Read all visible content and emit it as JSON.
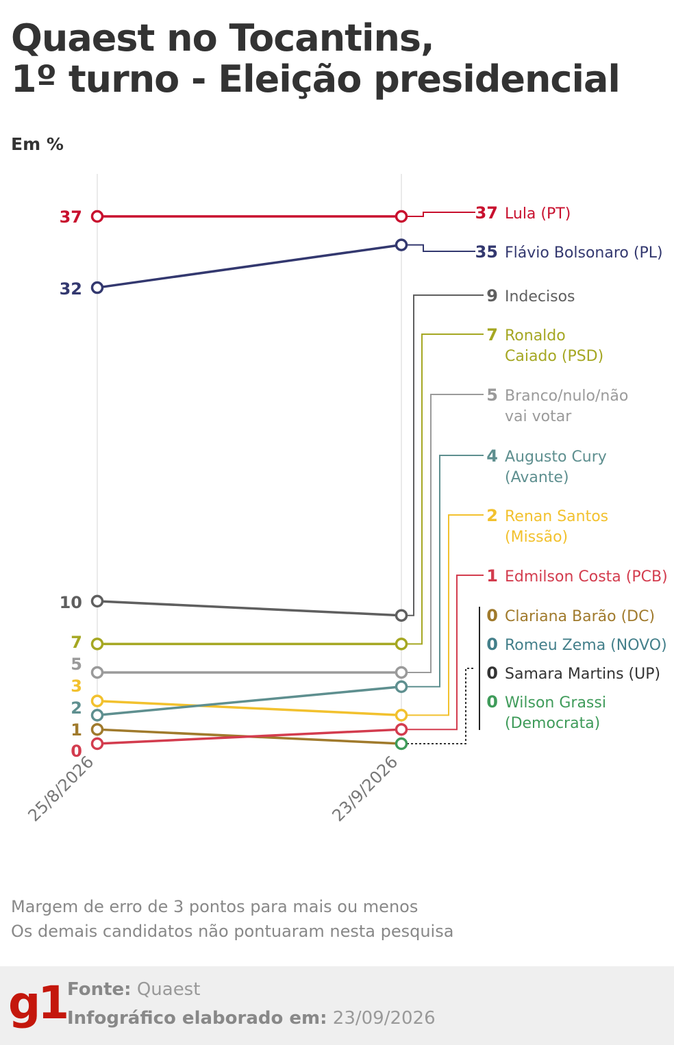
{
  "title_line1": "Quaest no Tocantins,",
  "title_line2": "1º turno - Eleição presidencial",
  "unit": "Em %",
  "chart_data": {
    "type": "line",
    "categories": [
      "25/8/2026",
      "23/9/2026"
    ],
    "series": [
      {
        "name": "Lula (PT)",
        "values": [
          37,
          37
        ],
        "color": "#c8102e"
      },
      {
        "name": "Flávio Bolsonaro (PL)",
        "values": [
          32,
          35
        ],
        "color": "#33386f"
      },
      {
        "name": "Indecisos",
        "values": [
          10,
          9
        ],
        "color": "#5f5f5f"
      },
      {
        "name": "Ronaldo Caiado (PSD)",
        "values": [
          7,
          7
        ],
        "color": "#a5a722"
      },
      {
        "name": "Branco/nulo/não vai votar",
        "values": [
          5,
          5
        ],
        "color": "#9a9a9a"
      },
      {
        "name": "Augusto Cury (Avante)",
        "values": [
          2,
          4
        ],
        "color": "#5e8f8f"
      },
      {
        "name": "Renan Santos (Missão)",
        "values": [
          3,
          2
        ],
        "color": "#f2c12e"
      },
      {
        "name": "Edmilson Costa (PCB)",
        "values": [
          0,
          1
        ],
        "color": "#d33c4e"
      },
      {
        "name": "Clariana Barão (DC)",
        "values": [
          1,
          0
        ],
        "color": "#a07a2c"
      },
      {
        "name": "Romeu Zema (NOVO)",
        "values": [
          null,
          0
        ],
        "color": "#437f8a"
      },
      {
        "name": "Samara Martins (UP)",
        "values": [
          null,
          0
        ],
        "color": "#333333"
      },
      {
        "name": "Wilson Grassi (Democrata)",
        "values": [
          null,
          0
        ],
        "color": "#3f9b5a"
      }
    ],
    "start_labels": [
      {
        "text": "37",
        "color": "#c8102e"
      },
      {
        "text": "32",
        "color": "#33386f"
      },
      {
        "text": "10",
        "color": "#5f5f5f"
      },
      {
        "text": "7",
        "color": "#a5a722"
      },
      {
        "text": "5",
        "color": "#9a9a9a"
      },
      {
        "text": "3",
        "color": "#f2c12e"
      },
      {
        "text": "2",
        "color": "#5e8f8f"
      },
      {
        "text": "1",
        "color": "#a07a2c"
      },
      {
        "text": "0",
        "color": "#d33c4e"
      }
    ],
    "end_labels": [
      {
        "value": "37",
        "lines": [
          "Lula (PT)"
        ],
        "color": "#c8102e"
      },
      {
        "value": "35",
        "lines": [
          "Flávio Bolsonaro (PL)"
        ],
        "color": "#33386f"
      },
      {
        "value": "9",
        "lines": [
          "Indecisos"
        ],
        "color": "#5f5f5f"
      },
      {
        "value": "7",
        "lines": [
          "Ronaldo",
          "Caiado (PSD)"
        ],
        "color": "#a5a722"
      },
      {
        "value": "5",
        "lines": [
          "Branco/nulo/não",
          "vai votar"
        ],
        "color": "#9a9a9a"
      },
      {
        "value": "4",
        "lines": [
          "Augusto Cury",
          "(Avante)"
        ],
        "color": "#5e8f8f"
      },
      {
        "value": "2",
        "lines": [
          "Renan Santos",
          "(Missão)"
        ],
        "color": "#f2c12e"
      },
      {
        "value": "1",
        "lines": [
          "Edmilson Costa (PCB)"
        ],
        "color": "#d33c4e"
      },
      {
        "value": "0",
        "lines": [
          "Clariana Barão (DC)"
        ],
        "color": "#a07a2c"
      },
      {
        "value": "0",
        "lines": [
          "Romeu Zema (NOVO)"
        ],
        "color": "#437f8a"
      },
      {
        "value": "0",
        "lines": [
          "Samara Martins (UP)"
        ],
        "color": "#333333"
      },
      {
        "value": "0",
        "lines": [
          "Wilson Grassi",
          "(Democrata)"
        ],
        "color": "#3f9b5a"
      }
    ],
    "xlabel": "",
    "ylabel": "Em %",
    "grid": true
  },
  "notes": [
    "Margem de erro de 3 pontos para mais ou menos",
    "Os demais candidatos não pontuaram nesta pesquisa"
  ],
  "footer": {
    "logo": "g1",
    "source_label": "Fonte:",
    "source_value": "Quaest",
    "date_label": "Infográfico elaborado em:",
    "date_value": "23/09/2026"
  }
}
